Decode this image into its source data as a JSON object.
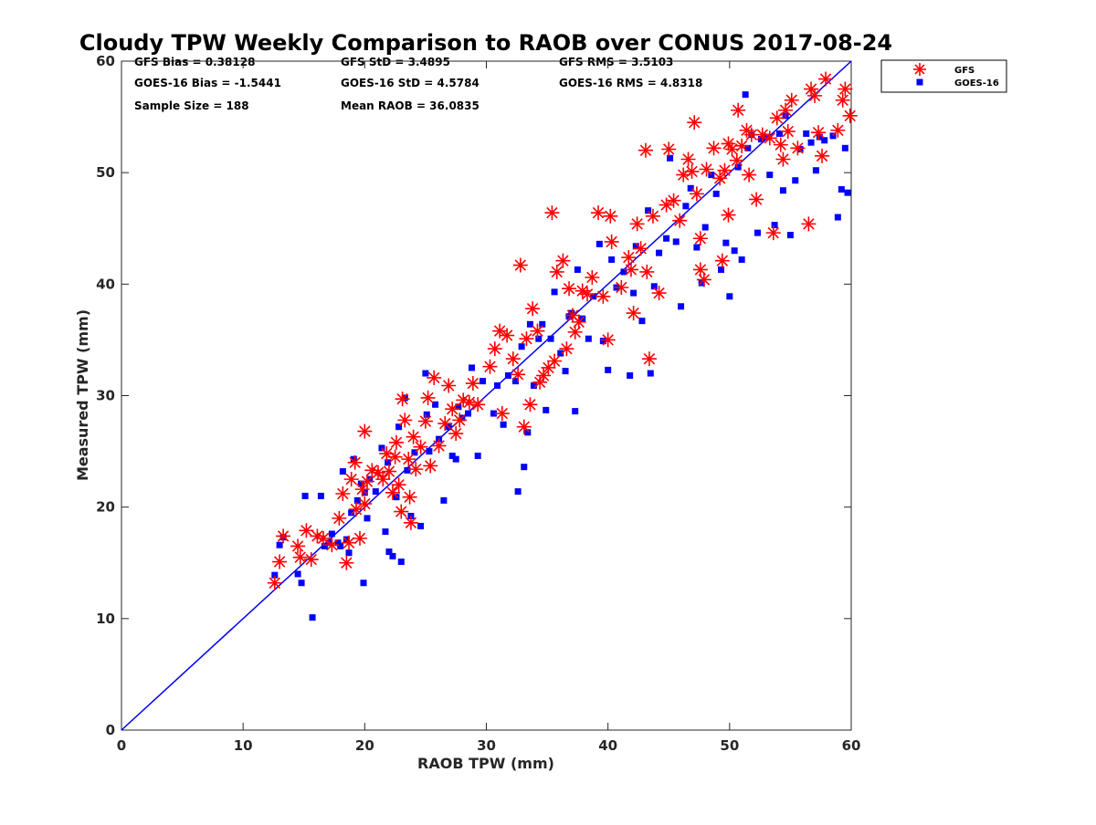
{
  "chart_data": {
    "type": "scatter",
    "title": "Cloudy TPW Weekly Comparison to RAOB over CONUS 2017-08-24",
    "xlabel": "RAOB TPW (mm)",
    "ylabel": "Measured TPW (mm)",
    "xlim": [
      0,
      60
    ],
    "ylim": [
      0,
      60
    ],
    "xticks": [
      "0",
      "10",
      "20",
      "30",
      "40",
      "50",
      "60"
    ],
    "yticks": [
      "0",
      "10",
      "20",
      "30",
      "40",
      "50",
      "60"
    ],
    "grid": false,
    "legend_position": "top-right outside",
    "reference_line": {
      "from": [
        0,
        0
      ],
      "to": [
        60,
        60
      ],
      "color": "#0000ff"
    },
    "stats": {
      "gfs_bias": "GFS Bias = 0.38128",
      "goes_bias": "GOES-16 Bias = -1.5441",
      "sample_size": "Sample Size = 188",
      "gfs_std": "GFS StD = 3.4895",
      "goes_std": "GOES-16 StD = 4.5784",
      "mean_raob": "Mean RAOB = 36.0835",
      "gfs_rms": "GFS RMS = 3.5103",
      "goes_rms": "GOES-16 RMS = 4.8318"
    },
    "series": [
      {
        "name": "GFS",
        "marker": "asterisk",
        "color": "#ff0000",
        "points": [
          [
            12.6,
            13.2
          ],
          [
            13,
            15.1
          ],
          [
            13.3,
            17.4
          ],
          [
            14.5,
            16.5
          ],
          [
            14.7,
            15.5
          ],
          [
            15.2,
            17.9
          ],
          [
            15.6,
            15.3
          ],
          [
            16.1,
            17.4
          ],
          [
            16.6,
            17.2
          ],
          [
            17.3,
            16.6
          ],
          [
            17.9,
            19
          ],
          [
            18.2,
            21.2
          ],
          [
            18.5,
            15
          ],
          [
            18.7,
            16.8
          ],
          [
            18.9,
            22.5
          ],
          [
            19.2,
            24
          ],
          [
            19.3,
            19.8
          ],
          [
            19.6,
            17.2
          ],
          [
            19.8,
            21.6
          ],
          [
            20,
            26.8
          ],
          [
            20,
            20.3
          ],
          [
            20.2,
            22.3
          ],
          [
            20.6,
            23.3
          ],
          [
            21.1,
            23.1
          ],
          [
            21.5,
            22.5
          ],
          [
            21.8,
            24.8
          ],
          [
            22,
            23.2
          ],
          [
            22.3,
            21.3
          ],
          [
            22.5,
            24.5
          ],
          [
            22.6,
            25.8
          ],
          [
            22.8,
            22
          ],
          [
            23,
            19.6
          ],
          [
            23.1,
            29.7
          ],
          [
            23.3,
            27.8
          ],
          [
            23.6,
            24.3
          ],
          [
            23.7,
            20.9
          ],
          [
            23.8,
            18.6
          ],
          [
            24,
            26.3
          ],
          [
            24.2,
            23.4
          ],
          [
            24.6,
            25.4
          ],
          [
            25,
            27.7
          ],
          [
            25.2,
            29.8
          ],
          [
            25.4,
            23.7
          ],
          [
            25.7,
            31.6
          ],
          [
            26.1,
            25.5
          ],
          [
            26.6,
            27.5
          ],
          [
            26.9,
            30.9
          ],
          [
            27.2,
            28.8
          ],
          [
            27.5,
            26.6
          ],
          [
            27.8,
            27.8
          ],
          [
            28.1,
            29.6
          ],
          [
            28.6,
            29.4
          ],
          [
            28.9,
            31.1
          ],
          [
            29.3,
            29.2
          ],
          [
            30.3,
            32.6
          ],
          [
            30.7,
            34.2
          ],
          [
            31.1,
            35.8
          ],
          [
            31.3,
            28.4
          ],
          [
            31.7,
            35.4
          ],
          [
            32.2,
            33.3
          ],
          [
            32.6,
            31.9
          ],
          [
            32.8,
            41.7
          ],
          [
            33.1,
            27.2
          ],
          [
            33.3,
            35.1
          ],
          [
            33.6,
            29.2
          ],
          [
            33.8,
            37.8
          ],
          [
            34.2,
            35.8
          ],
          [
            34.4,
            31.2
          ],
          [
            34.7,
            31.8
          ],
          [
            35.1,
            32.5
          ],
          [
            35.4,
            46.4
          ],
          [
            35.6,
            33.1
          ],
          [
            35.8,
            41.1
          ],
          [
            36.3,
            42.1
          ],
          [
            36.6,
            34.2
          ],
          [
            36.8,
            39.6
          ],
          [
            37.1,
            37.2
          ],
          [
            37.3,
            35.7
          ],
          [
            37.6,
            36.6
          ],
          [
            37.9,
            39.4
          ],
          [
            38.3,
            39.1
          ],
          [
            38.7,
            40.6
          ],
          [
            39.2,
            46.4
          ],
          [
            39.6,
            38.9
          ],
          [
            40,
            35
          ],
          [
            40.2,
            46.1
          ],
          [
            40.3,
            43.8
          ],
          [
            41.1,
            39.7
          ],
          [
            41.7,
            42.4
          ],
          [
            41.9,
            41.3
          ],
          [
            42.1,
            37.4
          ],
          [
            42.4,
            45.4
          ],
          [
            42.7,
            43.2
          ],
          [
            43.1,
            52
          ],
          [
            43.2,
            41.1
          ],
          [
            43.4,
            33.3
          ],
          [
            43.7,
            46.1
          ],
          [
            44.2,
            39.2
          ],
          [
            44.8,
            47.1
          ],
          [
            45,
            52.1
          ],
          [
            45.4,
            47.5
          ],
          [
            45.9,
            45.7
          ],
          [
            46.2,
            49.8
          ],
          [
            46.6,
            51.2
          ],
          [
            46.9,
            50.1
          ],
          [
            47.1,
            54.5
          ],
          [
            47.3,
            48.1
          ],
          [
            47.6,
            44.1
          ],
          [
            47.6,
            41.3
          ],
          [
            47.9,
            40.4
          ],
          [
            48.1,
            50.3
          ],
          [
            48.7,
            52.2
          ],
          [
            49.2,
            49.5
          ],
          [
            49.4,
            42.1
          ],
          [
            49.6,
            50.2
          ],
          [
            49.9,
            52.6
          ],
          [
            49.9,
            46.2
          ],
          [
            50.2,
            52.1
          ],
          [
            50.6,
            51.1
          ],
          [
            50.7,
            55.6
          ],
          [
            51,
            52.4
          ],
          [
            51.4,
            53.8
          ],
          [
            51.6,
            49.8
          ],
          [
            51.8,
            53.4
          ],
          [
            52.2,
            47.6
          ],
          [
            52.7,
            53.4
          ],
          [
            53.3,
            53.1
          ],
          [
            53.6,
            44.6
          ],
          [
            53.9,
            54.9
          ],
          [
            54.2,
            52.5
          ],
          [
            54.4,
            51.2
          ],
          [
            54.6,
            55.6
          ],
          [
            54.8,
            53.7
          ],
          [
            55.1,
            56.5
          ],
          [
            55.6,
            52.2
          ],
          [
            56.5,
            45.4
          ],
          [
            56.7,
            57.5
          ],
          [
            57,
            56.9
          ],
          [
            57.3,
            53.6
          ],
          [
            57.6,
            51.5
          ],
          [
            57.9,
            58.4
          ],
          [
            58.9,
            53.8
          ],
          [
            59.3,
            56.5
          ],
          [
            59.5,
            57.5
          ],
          [
            59.9,
            55.1
          ]
        ]
      },
      {
        "name": "GOES-16",
        "marker": "square",
        "color": "#0000ff",
        "points": [
          [
            12.6,
            13.9
          ],
          [
            13,
            16.6
          ],
          [
            13.3,
            17.3
          ],
          [
            14.5,
            14
          ],
          [
            14.8,
            13.2
          ],
          [
            15.1,
            21
          ],
          [
            15.7,
            10.1
          ],
          [
            16.4,
            21
          ],
          [
            16.7,
            16.5
          ],
          [
            17.1,
            16.8
          ],
          [
            17.3,
            17.6
          ],
          [
            17.8,
            16.8
          ],
          [
            18,
            16.5
          ],
          [
            18.2,
            23.2
          ],
          [
            18.5,
            17.1
          ],
          [
            18.7,
            15.9
          ],
          [
            18.9,
            19.5
          ],
          [
            19.1,
            24.3
          ],
          [
            19.4,
            20.6
          ],
          [
            19.7,
            22.1
          ],
          [
            19.9,
            13.2
          ],
          [
            20,
            21.3
          ],
          [
            20.2,
            19
          ],
          [
            20.4,
            22.5
          ],
          [
            20.9,
            21.4
          ],
          [
            21.4,
            25.3
          ],
          [
            21.7,
            17.8
          ],
          [
            21.9,
            24
          ],
          [
            22,
            16
          ],
          [
            22.3,
            15.6
          ],
          [
            22.6,
            20.9
          ],
          [
            22.8,
            27.2
          ],
          [
            23,
            15.1
          ],
          [
            23.3,
            29.8
          ],
          [
            23.5,
            23.3
          ],
          [
            23.8,
            19.2
          ],
          [
            24.1,
            24.9
          ],
          [
            24.6,
            18.3
          ],
          [
            25,
            32
          ],
          [
            25.1,
            28.3
          ],
          [
            25.3,
            25
          ],
          [
            25.8,
            29.2
          ],
          [
            26.1,
            26.1
          ],
          [
            26.5,
            20.6
          ],
          [
            26.9,
            27.2
          ],
          [
            27.2,
            24.6
          ],
          [
            27.5,
            24.3
          ],
          [
            27.7,
            29
          ],
          [
            28,
            28
          ],
          [
            28.5,
            28.4
          ],
          [
            28.8,
            32.5
          ],
          [
            29.3,
            24.6
          ],
          [
            29.7,
            31.3
          ],
          [
            30.6,
            28.4
          ],
          [
            30.9,
            30.9
          ],
          [
            31.4,
            27.4
          ],
          [
            31.8,
            31.8
          ],
          [
            32.4,
            31.3
          ],
          [
            32.6,
            21.4
          ],
          [
            32.9,
            34.4
          ],
          [
            33.1,
            23.6
          ],
          [
            33.4,
            26.7
          ],
          [
            33.6,
            36.4
          ],
          [
            33.9,
            30.9
          ],
          [
            34.3,
            35.1
          ],
          [
            34.6,
            36.4
          ],
          [
            34.9,
            28.7
          ],
          [
            35.3,
            35.1
          ],
          [
            35.6,
            39.3
          ],
          [
            36.1,
            33.8
          ],
          [
            36.5,
            32.2
          ],
          [
            36.8,
            37.1
          ],
          [
            37,
            37.4
          ],
          [
            37.3,
            28.6
          ],
          [
            37.5,
            41.3
          ],
          [
            37.9,
            36.9
          ],
          [
            38.4,
            35.1
          ],
          [
            38.8,
            38.9
          ],
          [
            39.3,
            43.6
          ],
          [
            39.6,
            34.9
          ],
          [
            40,
            32.3
          ],
          [
            40.3,
            42.2
          ],
          [
            40.7,
            39.7
          ],
          [
            41.3,
            41.1
          ],
          [
            41.8,
            31.8
          ],
          [
            42.1,
            39.2
          ],
          [
            42.3,
            43.4
          ],
          [
            42.8,
            36.7
          ],
          [
            43.3,
            46.6
          ],
          [
            43.5,
            32
          ],
          [
            43.8,
            39.8
          ],
          [
            44.2,
            42.8
          ],
          [
            44.8,
            44.1
          ],
          [
            45.1,
            51.3
          ],
          [
            45.6,
            43.8
          ],
          [
            46,
            38
          ],
          [
            46.4,
            47
          ],
          [
            46.8,
            48.6
          ],
          [
            47.3,
            43.3
          ],
          [
            47.7,
            40.1
          ],
          [
            48,
            45.1
          ],
          [
            48.5,
            49.8
          ],
          [
            48.9,
            48.1
          ],
          [
            49.3,
            41.3
          ],
          [
            49.7,
            43.7
          ],
          [
            50,
            38.9
          ],
          [
            50.4,
            43
          ],
          [
            50.7,
            50.5
          ],
          [
            51,
            42.2
          ],
          [
            51.3,
            57
          ],
          [
            51.5,
            52.2
          ],
          [
            51.8,
            53.4
          ],
          [
            52.3,
            44.6
          ],
          [
            52.6,
            53
          ],
          [
            53,
            53.2
          ],
          [
            53.3,
            49.8
          ],
          [
            53.7,
            45.3
          ],
          [
            54.1,
            53.5
          ],
          [
            54.4,
            48.4
          ],
          [
            54.6,
            55.1
          ],
          [
            55,
            44.4
          ],
          [
            55.4,
            49.3
          ],
          [
            55.8,
            52.1
          ],
          [
            56.3,
            53.5
          ],
          [
            56.7,
            52.7
          ],
          [
            57.1,
            50.2
          ],
          [
            57.4,
            53.2
          ],
          [
            57.8,
            52.9
          ],
          [
            58.5,
            53.3
          ],
          [
            58.9,
            46
          ],
          [
            59.2,
            48.5
          ],
          [
            59.5,
            52.2
          ],
          [
            59.7,
            48.2
          ]
        ]
      }
    ]
  }
}
